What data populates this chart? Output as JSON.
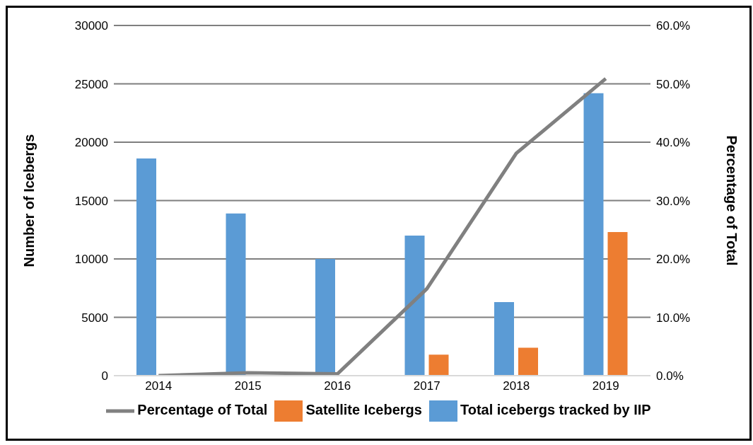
{
  "chart_data": {
    "type": "bar",
    "categories": [
      "2014",
      "2015",
      "2016",
      "2017",
      "2018",
      "2019"
    ],
    "series": [
      {
        "name": "Total  icebergs tracked by IIP",
        "color": "#5b9bd5",
        "values": [
          18600,
          13900,
          10000,
          12000,
          6300,
          24200
        ]
      },
      {
        "name": "Satellite Icebergs",
        "color": "#ed7d31",
        "values": [
          null,
          null,
          null,
          1800,
          2400,
          12300
        ]
      },
      {
        "name": "Percentage of Total",
        "color": "#808080",
        "type": "line",
        "axis": "y2",
        "values": [
          0.0,
          0.5,
          0.3,
          14.9,
          38.1,
          50.9
        ]
      }
    ],
    "ylabel": "Number of Icebergs",
    "y2label": "Percentage of Total",
    "ylim": [
      0,
      30000
    ],
    "yticks": [
      0,
      5000,
      10000,
      15000,
      20000,
      25000,
      30000
    ],
    "y2lim": [
      0,
      60
    ],
    "y2ticks": [
      {
        "value": 0,
        "label": "0.0%"
      },
      {
        "value": 10,
        "label": "10.0%"
      },
      {
        "value": 20,
        "label": "20.0%"
      },
      {
        "value": 30,
        "label": "30.0%"
      },
      {
        "value": 40,
        "label": "40.0%"
      },
      {
        "value": 50,
        "label": "50.0%"
      },
      {
        "value": 60,
        "label": "60.0%"
      }
    ],
    "grid": "y",
    "legend": "bottom",
    "marker": "none"
  }
}
